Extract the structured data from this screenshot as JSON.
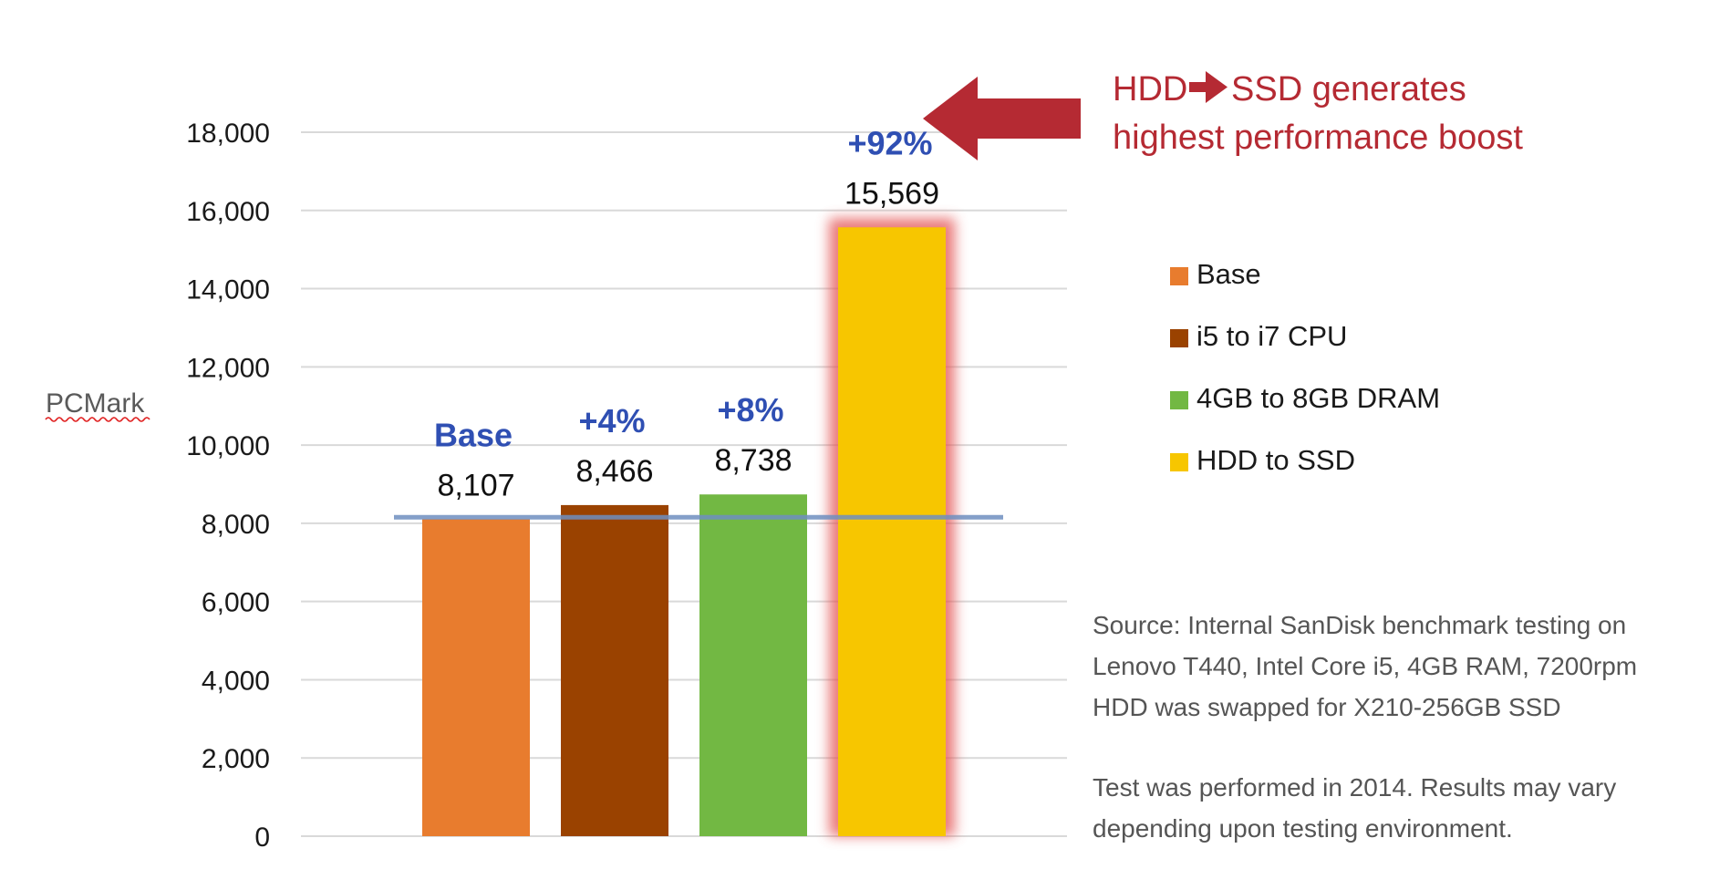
{
  "chart_data": {
    "type": "bar",
    "ylabel": "PCMark",
    "ylim": [
      0,
      18000
    ],
    "yticks": [
      "0",
      "2,000",
      "4,000",
      "6,000",
      "8,000",
      "10,000",
      "12,000",
      "14,000",
      "16,000",
      "18,000"
    ],
    "ytick_values": [
      0,
      2000,
      4000,
      6000,
      8000,
      10000,
      12000,
      14000,
      16000,
      18000
    ],
    "grid": true,
    "legend_position": "right",
    "baseline_value": 8107,
    "categories": [
      "Base",
      "i5 to i7 CPU",
      "4GB to 8GB DRAM",
      "HDD to SSD"
    ],
    "values": [
      8107,
      8466,
      8738,
      15569
    ],
    "value_labels": [
      "8,107",
      "8,466",
      "8,738",
      "15,569"
    ],
    "change_labels": [
      "Base",
      "+4%",
      "+8%",
      "+92%"
    ],
    "colors": [
      "#e87c2e",
      "#9a4200",
      "#72b843",
      "#f7c600"
    ],
    "highlight_glow_color": "#e35050",
    "baseline_color": "#6f8fc0",
    "callout": {
      "line1_before": "HDD",
      "line1_after": "SSD generates",
      "line2": "highest performance boost",
      "arrow_color": "#b52a33"
    },
    "notes": [
      "Source: Internal SanDisk benchmark testing on",
      "Lenovo T440, Intel Core i5, 4GB RAM, 7200rpm",
      "HDD was swapped for X210-256GB SSD",
      "Test was performed in 2014. Results may vary",
      "depending upon testing environment."
    ]
  }
}
